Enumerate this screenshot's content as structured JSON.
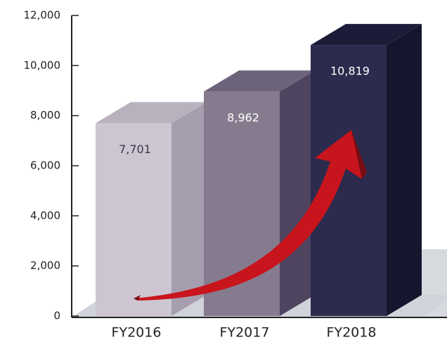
{
  "chart_data": {
    "type": "bar3d",
    "categories": [
      "FY2016",
      "FY2017",
      "FY2018"
    ],
    "values": [
      7701,
      8962,
      10819
    ],
    "value_labels": [
      "7,701",
      "8,962",
      "10,819"
    ],
    "ylim": [
      0,
      12000
    ],
    "yticks": [
      0,
      {
        "value": 2000,
        "label": "2,000"
      },
      {
        "value": 4000,
        "label": "4,000"
      },
      {
        "value": 6000,
        "label": "6,000"
      },
      {
        "value": 8000,
        "label": "8,000"
      },
      {
        "value": 10000,
        "label": "10,000"
      },
      {
        "value": 12000,
        "label": "12,000"
      }
    ],
    "colors": [
      {
        "front": "#cdc6d2",
        "side": "#a69eae",
        "top": "#b9b1bd",
        "label": "#3b3848"
      },
      {
        "front": "#867b8e",
        "side": "#4e4460",
        "top": "#6c6279",
        "label": "#ffffff"
      },
      {
        "front": "#2c2a4d",
        "side": "#15152e",
        "top": "#1c1c39",
        "label": "#ffffff"
      }
    ]
  }
}
